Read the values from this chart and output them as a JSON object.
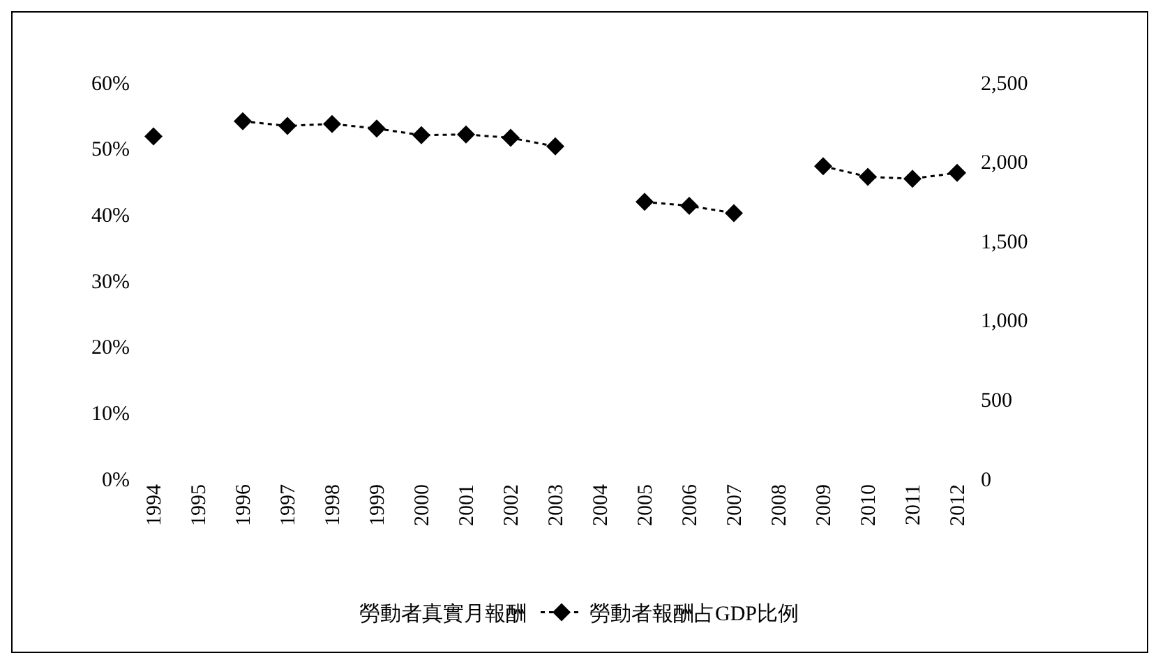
{
  "chart_data": {
    "type": "line",
    "categories": [
      "1994",
      "1995",
      "1996",
      "1997",
      "1998",
      "1999",
      "2000",
      "2001",
      "2002",
      "2003",
      "2004",
      "2005",
      "2006",
      "2007",
      "2008",
      "2009",
      "2010",
      "2011",
      "2012"
    ],
    "series": [
      {
        "name": "勞動者真實月報酬",
        "type": "bar",
        "axis": "y2",
        "values": [
          null,
          null,
          null,
          null,
          null,
          null,
          null,
          null,
          null,
          null,
          null,
          null,
          null,
          null,
          null,
          null,
          null,
          null,
          null
        ]
      },
      {
        "name": "勞動者報酬占GDP比例",
        "color": "#000000",
        "values": [
          51.8,
          null,
          54.1,
          53.4,
          53.7,
          53.0,
          52.0,
          52.1,
          51.6,
          50.3,
          null,
          41.9,
          41.3,
          40.2,
          null,
          47.3,
          45.7,
          45.4,
          46.3
        ]
      }
    ],
    "ylim": [
      0,
      60
    ],
    "yticks": [
      {
        "value": 0,
        "label": "0%"
      },
      {
        "value": 10,
        "label": "10%"
      },
      {
        "value": 20,
        "label": "20%"
      },
      {
        "value": 30,
        "label": "30%"
      },
      {
        "value": 40,
        "label": "40%"
      },
      {
        "value": 50,
        "label": "50%"
      },
      {
        "value": 60,
        "label": "60%"
      }
    ],
    "y2lim": [
      0,
      2500
    ],
    "y2ticks": [
      0,
      500,
      {
        "value": 1000,
        "label": "1,000"
      },
      {
        "value": 1500,
        "label": "1,500"
      },
      {
        "value": 2000,
        "label": "2,000"
      },
      {
        "value": 2500,
        "label": "2,500"
      }
    ],
    "grid": false,
    "legend": "bottom",
    "marker": "diamond",
    "line_style": "dotted"
  }
}
